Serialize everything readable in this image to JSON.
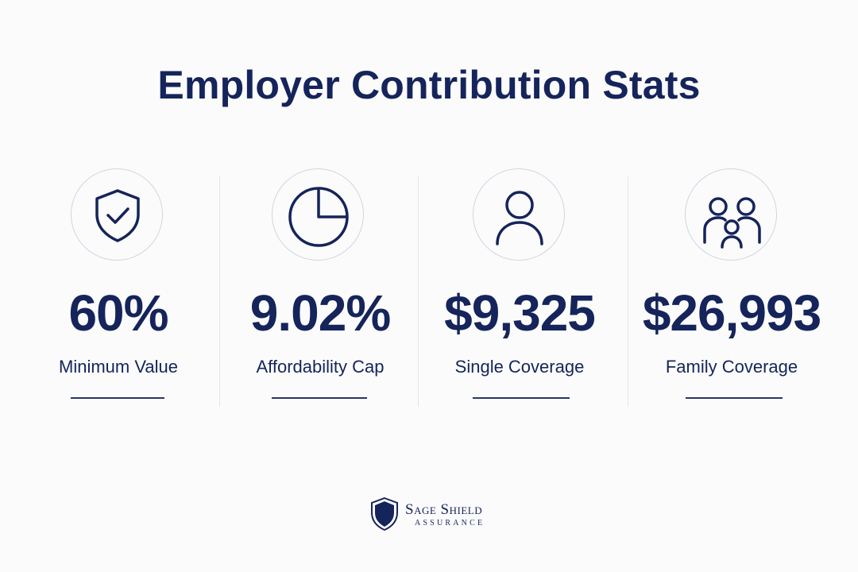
{
  "title": "Employer Contribution Stats",
  "stats": [
    {
      "icon": "shield-check-icon",
      "value": "60%",
      "label": "Minimum Value"
    },
    {
      "icon": "pie-chart-icon",
      "value": "9.02%",
      "label": "Affordability Cap"
    },
    {
      "icon": "person-icon",
      "value": "$9,325",
      "label": "Single Coverage"
    },
    {
      "icon": "family-icon",
      "value": "$26,993",
      "label": "Family Coverage"
    }
  ],
  "brand": {
    "name": "Sage Shield",
    "subtitle": "ASSURANCE",
    "icon": "shield-logo-icon"
  },
  "colors": {
    "primary": "#15245a",
    "background": "#fbfbfc",
    "circle_border": "#cfd6e0",
    "divider": "#e3e6ec"
  }
}
